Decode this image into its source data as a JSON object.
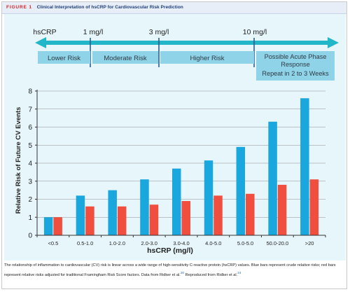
{
  "figure": {
    "label": "FIGURE 1",
    "title": "Clinical Interpretation of hsCRP for Cardiovascular Risk Prediction"
  },
  "scale": {
    "name": "hsCRP",
    "thresholds": [
      "1 mg/l",
      "3 mg/l",
      "10 mg/l"
    ],
    "categories": [
      {
        "line1": "Lower Risk",
        "line2": "",
        "line3": ""
      },
      {
        "line1": "Moderate Risk",
        "line2": "",
        "line3": ""
      },
      {
        "line1": "Higher Risk",
        "line2": "",
        "line3": ""
      },
      {
        "line1": "Possible Acute Phase",
        "line2": "Response",
        "line3": "Repeat in 2 to 3 Weeks"
      }
    ]
  },
  "chart_data": {
    "type": "bar",
    "categories": [
      "<0.5",
      "0.5-1.0",
      "1.0-2.0",
      "2.0-3.0",
      "3.0-4.0",
      "4.0-5.0",
      "5.0-5.0",
      "50.0-20.0",
      ">20"
    ],
    "series": [
      {
        "values": [
          1.0,
          2.2,
          2.5,
          3.1,
          3.7,
          4.15,
          4.9,
          6.3,
          7.6
        ],
        "color": "#1aa7de"
      },
      {
        "values": [
          1.0,
          1.6,
          1.6,
          1.7,
          1.9,
          2.2,
          2.3,
          2.8,
          3.1
        ],
        "color": "#f04e3e"
      }
    ],
    "title": "",
    "xlabel": "hsCRP (mg/l)",
    "ylabel": "Relative Risk of Future CV Events",
    "ylim": [
      0,
      8
    ],
    "yticks": [
      "0",
      "1",
      "2",
      "3",
      "4",
      "5",
      "6",
      "7",
      "8"
    ],
    "grid": true
  },
  "caption": {
    "text": "The relationship of inflammation to cardiovascular (CV) risk is linear across a wide range of high-sensitivity C-reactive protein (hsCRP) values. Blue bars represent crude relative risks; red bars represent relative risks adjusted for traditional Framingham Risk Score factors. Data from Ridker et al.",
    "cite1": "20",
    "mid": " Reproduced from Ridker et al.",
    "cite2": "24"
  },
  "colors": {
    "arrow": "#22b6c9",
    "box": "#8fd3e8",
    "box_text": "#2f3b45",
    "grid": "#8f8f8f"
  }
}
